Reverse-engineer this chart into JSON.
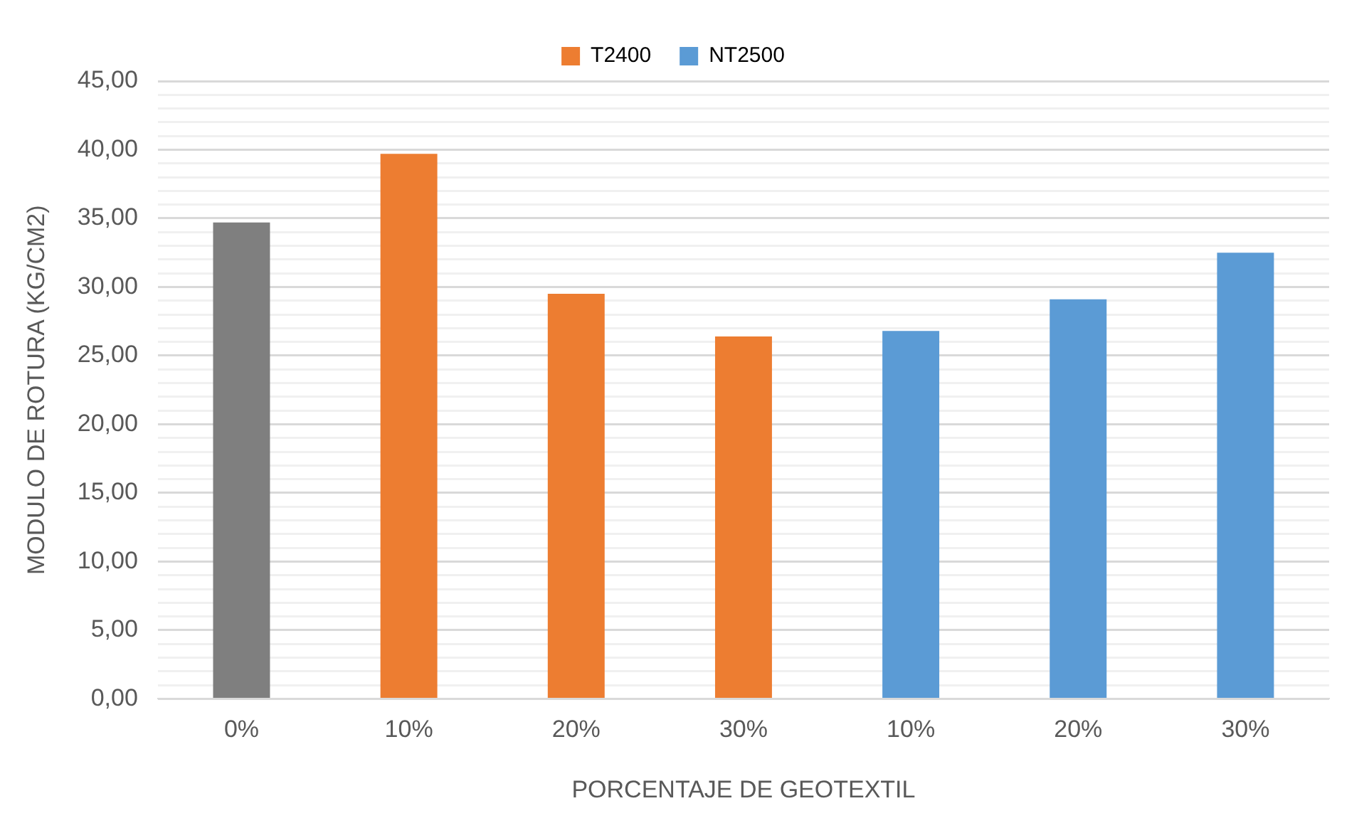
{
  "chart_data": {
    "type": "bar",
    "xlabel": "PORCENTAJE DE GEOTEXTIL",
    "ylabel": "MODULO DE ROTURA (KG/CM2)",
    "categories": [
      "0%",
      "10%",
      "20%",
      "30%",
      "10%",
      "20%",
      "30%"
    ],
    "series": [
      {
        "color": "#7f7f7f",
        "values": [
          34.7,
          null,
          null,
          null,
          null,
          null,
          null
        ]
      },
      {
        "name": "T2400",
        "color": "#ed7d31",
        "values": [
          null,
          39.7,
          29.5,
          26.4,
          null,
          null,
          null
        ]
      },
      {
        "name": "NT2500",
        "color": "#5b9bd5",
        "values": [
          null,
          null,
          null,
          null,
          26.8,
          29.1,
          32.5
        ]
      }
    ],
    "ylim": [
      0,
      45
    ],
    "yticks": [
      {
        "value": 0,
        "label": "0,00"
      },
      {
        "value": 1,
        "label": null
      },
      {
        "value": 2,
        "label": null
      },
      {
        "value": 3,
        "label": null
      },
      {
        "value": 4,
        "label": null
      },
      {
        "value": 5,
        "label": "5,00"
      },
      {
        "value": 6,
        "label": null
      },
      {
        "value": 7,
        "label": null
      },
      {
        "value": 8,
        "label": null
      },
      {
        "value": 9,
        "label": null
      },
      {
        "value": 10,
        "label": "10,00"
      },
      {
        "value": 11,
        "label": null
      },
      {
        "value": 12,
        "label": null
      },
      {
        "value": 13,
        "label": null
      },
      {
        "value": 14,
        "label": null
      },
      {
        "value": 15,
        "label": "15,00"
      },
      {
        "value": 16,
        "label": null
      },
      {
        "value": 17,
        "label": null
      },
      {
        "value": 18,
        "label": null
      },
      {
        "value": 19,
        "label": null
      },
      {
        "value": 20,
        "label": "20,00"
      },
      {
        "value": 21,
        "label": null
      },
      {
        "value": 22,
        "label": null
      },
      {
        "value": 23,
        "label": null
      },
      {
        "value": 24,
        "label": null
      },
      {
        "value": 25,
        "label": "25,00"
      },
      {
        "value": 26,
        "label": null
      },
      {
        "value": 27,
        "label": null
      },
      {
        "value": 28,
        "label": null
      },
      {
        "value": 29,
        "label": null
      },
      {
        "value": 30,
        "label": "30,00"
      },
      {
        "value": 31,
        "label": null
      },
      {
        "value": 32,
        "label": null
      },
      {
        "value": 33,
        "label": null
      },
      {
        "value": 34,
        "label": null
      },
      {
        "value": 35,
        "label": "35,00"
      },
      {
        "value": 36,
        "label": null
      },
      {
        "value": 37,
        "label": null
      },
      {
        "value": 38,
        "label": null
      },
      {
        "value": 39,
        "label": null
      },
      {
        "value": 40,
        "label": "40,00"
      },
      {
        "value": 41,
        "label": null
      },
      {
        "value": 42,
        "label": null
      },
      {
        "value": 43,
        "label": null
      },
      {
        "value": 44,
        "label": null
      },
      {
        "value": 45,
        "label": "45,00"
      }
    ],
    "grid": "y",
    "legend": "top"
  }
}
